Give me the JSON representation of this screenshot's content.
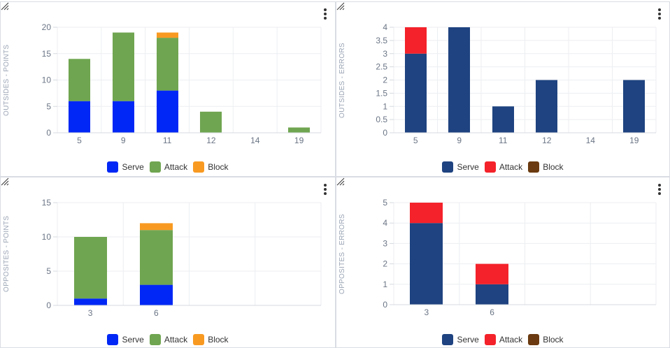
{
  "charts": [
    {
      "type": "bar",
      "stacked": true,
      "ylabel": "OUTSIDES - POINTS",
      "categories": [
        "5",
        "9",
        "11",
        "12",
        "14",
        "19"
      ],
      "ylim": [
        0,
        20
      ],
      "yticks": [
        0,
        5,
        10,
        15,
        20
      ],
      "series": [
        {
          "name": "Serve",
          "color": "#0027f5",
          "values": [
            6,
            6,
            8,
            0,
            0,
            0
          ]
        },
        {
          "name": "Attack",
          "color": "#6fa550",
          "values": [
            8,
            13,
            10,
            4,
            0,
            1
          ]
        },
        {
          "name": "Block",
          "color": "#f89a22",
          "values": [
            0,
            0,
            1,
            0,
            0,
            0
          ]
        }
      ]
    },
    {
      "type": "bar",
      "stacked": true,
      "ylabel": "OUTSIDES - ERRORS",
      "categories": [
        "5",
        "9",
        "11",
        "12",
        "14",
        "19"
      ],
      "ylim": [
        0,
        4
      ],
      "yticks": [
        0,
        0.5,
        1,
        1.5,
        2,
        2.5,
        3,
        3.5,
        4
      ],
      "series": [
        {
          "name": "Serve",
          "color": "#1f4380",
          "values": [
            3,
            4,
            1,
            2,
            0,
            2
          ]
        },
        {
          "name": "Attack",
          "color": "#f4222a",
          "values": [
            1,
            0,
            0,
            0,
            0,
            0
          ]
        },
        {
          "name": "Block",
          "color": "#6b3a10",
          "values": [
            0,
            0,
            0,
            0,
            0,
            0
          ]
        }
      ]
    },
    {
      "type": "bar",
      "stacked": true,
      "ylabel": "OPPOSITES - POINTS",
      "categories": [
        "3",
        "6"
      ],
      "slots": 4,
      "ylim": [
        0,
        15
      ],
      "yticks": [
        0,
        5,
        10,
        15
      ],
      "series": [
        {
          "name": "Serve",
          "color": "#0027f5",
          "values": [
            1,
            3
          ]
        },
        {
          "name": "Attack",
          "color": "#6fa550",
          "values": [
            9,
            8
          ]
        },
        {
          "name": "Block",
          "color": "#f89a22",
          "values": [
            0,
            1
          ]
        }
      ]
    },
    {
      "type": "bar",
      "stacked": true,
      "ylabel": "OPPOSITES - ERRORS",
      "categories": [
        "3",
        "6"
      ],
      "slots": 4,
      "ylim": [
        0,
        5
      ],
      "yticks": [
        0,
        1,
        2,
        3,
        4,
        5
      ],
      "series": [
        {
          "name": "Serve",
          "color": "#1f4380",
          "values": [
            4,
            1
          ]
        },
        {
          "name": "Attack",
          "color": "#f4222a",
          "values": [
            1,
            1
          ]
        },
        {
          "name": "Block",
          "color": "#6b3a10",
          "values": [
            0,
            0
          ]
        }
      ]
    }
  ]
}
